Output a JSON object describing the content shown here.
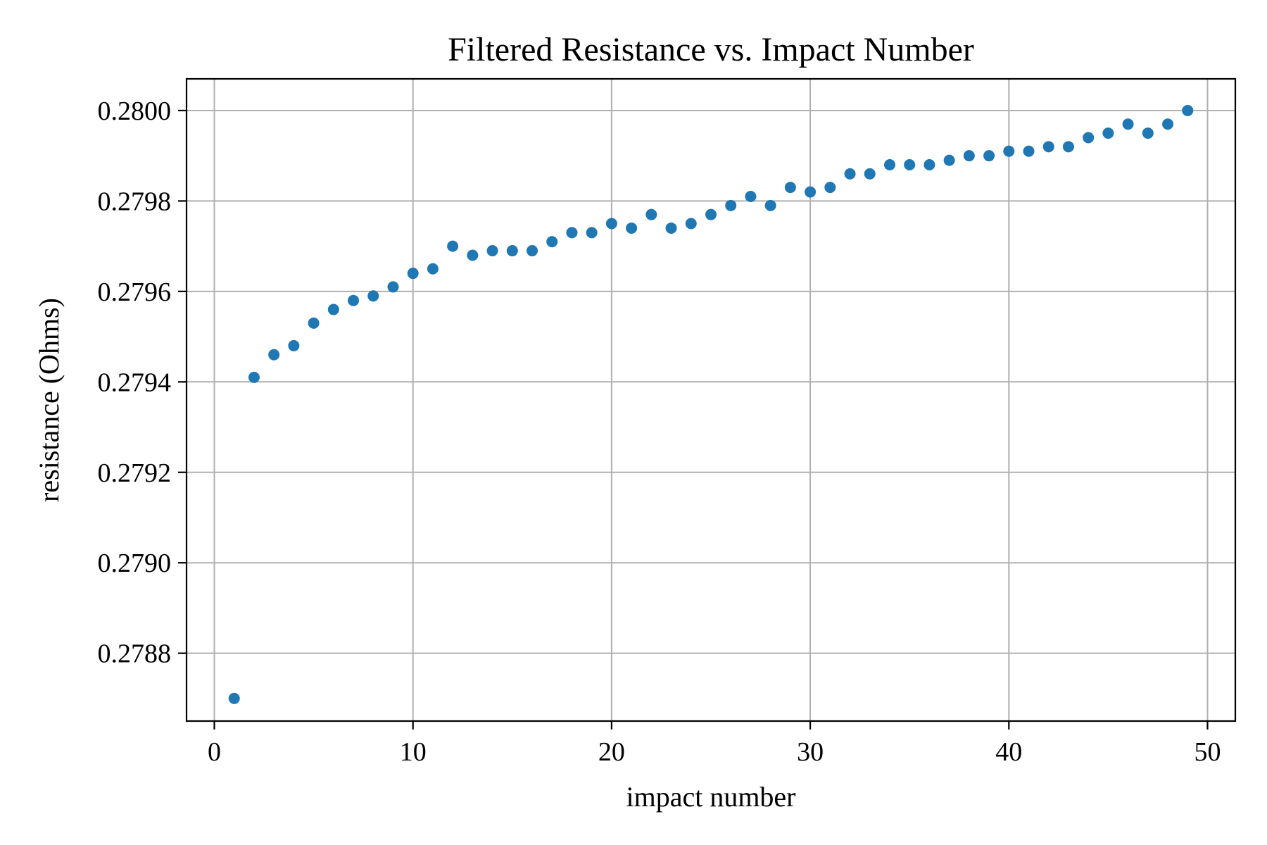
{
  "chart_data": {
    "type": "scatter",
    "title": "Filtered Resistance vs. Impact Number",
    "xlabel": "impact number",
    "ylabel": "resistance (Ohms)",
    "xlim": [
      -1.4,
      51.4
    ],
    "ylim": [
      0.27865,
      0.28007
    ],
    "x_ticks": [
      0,
      10,
      20,
      30,
      40,
      50
    ],
    "x_tick_labels": [
      "0",
      "10",
      "20",
      "30",
      "40",
      "50"
    ],
    "y_ticks": [
      0.2788,
      0.279,
      0.2792,
      0.2794,
      0.2796,
      0.2798,
      0.28
    ],
    "y_tick_labels": [
      "0.2788",
      "0.2790",
      "0.2792",
      "0.2794",
      "0.2796",
      "0.2798",
      "0.2800"
    ],
    "grid": true,
    "marker_color": "#1f77b4",
    "grid_color": "#b0b0b0",
    "x": [
      1,
      2,
      3,
      4,
      5,
      6,
      7,
      8,
      9,
      10,
      11,
      12,
      13,
      14,
      15,
      16,
      17,
      18,
      19,
      20,
      21,
      22,
      23,
      24,
      25,
      26,
      27,
      28,
      29,
      30,
      31,
      32,
      33,
      34,
      35,
      36,
      37,
      38,
      39,
      40,
      41,
      42,
      43,
      44,
      45,
      46,
      47,
      48,
      49
    ],
    "y": [
      0.2787,
      0.27941,
      0.27946,
      0.27948,
      0.27953,
      0.27956,
      0.27958,
      0.27959,
      0.27961,
      0.27964,
      0.27965,
      0.2797,
      0.27968,
      0.27969,
      0.27969,
      0.27969,
      0.27971,
      0.27973,
      0.27973,
      0.27975,
      0.27974,
      0.27977,
      0.27974,
      0.27975,
      0.27977,
      0.27979,
      0.27981,
      0.27979,
      0.27983,
      0.27982,
      0.27983,
      0.27986,
      0.27986,
      0.27988,
      0.27988,
      0.27988,
      0.27989,
      0.2799,
      0.2799,
      0.27991,
      0.27991,
      0.27992,
      0.27992,
      0.27994,
      0.27995,
      0.27997,
      0.27995,
      0.27997,
      0.28
    ]
  }
}
